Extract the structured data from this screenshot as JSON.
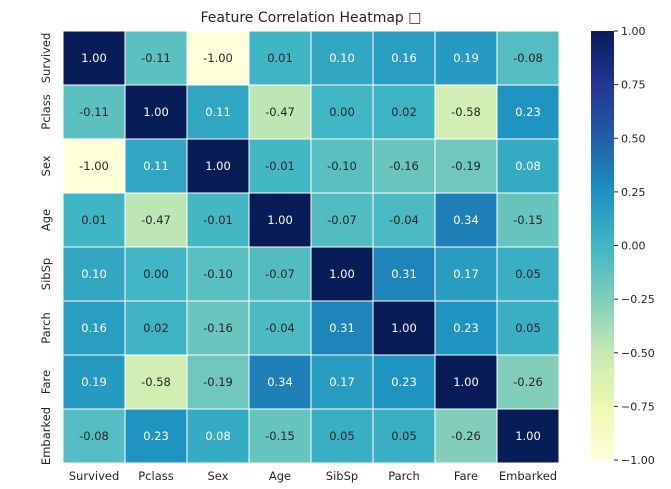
{
  "chart_data": {
    "type": "heatmap",
    "title": "Feature Correlation Heatmap □",
    "xlabel": "",
    "ylabel": "",
    "labels": [
      "Survived",
      "Pclass",
      "Sex",
      "Age",
      "SibSp",
      "Parch",
      "Fare",
      "Embarked"
    ],
    "matrix": [
      [
        1.0,
        -0.11,
        -1.0,
        0.01,
        0.1,
        0.16,
        0.19,
        -0.08
      ],
      [
        -0.11,
        1.0,
        0.11,
        -0.47,
        0.0,
        0.02,
        -0.58,
        0.23
      ],
      [
        -1.0,
        0.11,
        1.0,
        -0.01,
        -0.1,
        -0.16,
        -0.19,
        0.08
      ],
      [
        0.01,
        -0.47,
        -0.01,
        1.0,
        -0.07,
        -0.04,
        0.34,
        -0.15
      ],
      [
        0.1,
        0.0,
        -0.1,
        -0.07,
        1.0,
        0.31,
        0.17,
        0.05
      ],
      [
        0.16,
        0.02,
        -0.16,
        -0.04,
        0.31,
        1.0,
        0.23,
        0.05
      ],
      [
        0.19,
        -0.58,
        -0.19,
        0.34,
        0.17,
        0.23,
        1.0,
        -0.26
      ],
      [
        -0.08,
        0.23,
        0.08,
        -0.15,
        0.05,
        0.05,
        -0.26,
        1.0
      ]
    ],
    "value_range": [
      -1.0,
      1.0
    ],
    "colormap": "YlGnBu",
    "colorbar_ticks": [
      1.0,
      0.75,
      0.5,
      0.25,
      0.0,
      -0.25,
      -0.5,
      -0.75,
      -1.0
    ],
    "colorbar_tick_labels": [
      "1.00",
      "0.75",
      "0.50",
      "0.25",
      "0.00",
      "−0.25",
      "−0.50",
      "−0.75",
      "−1.00"
    ],
    "annotation_format": "2 decimals"
  }
}
